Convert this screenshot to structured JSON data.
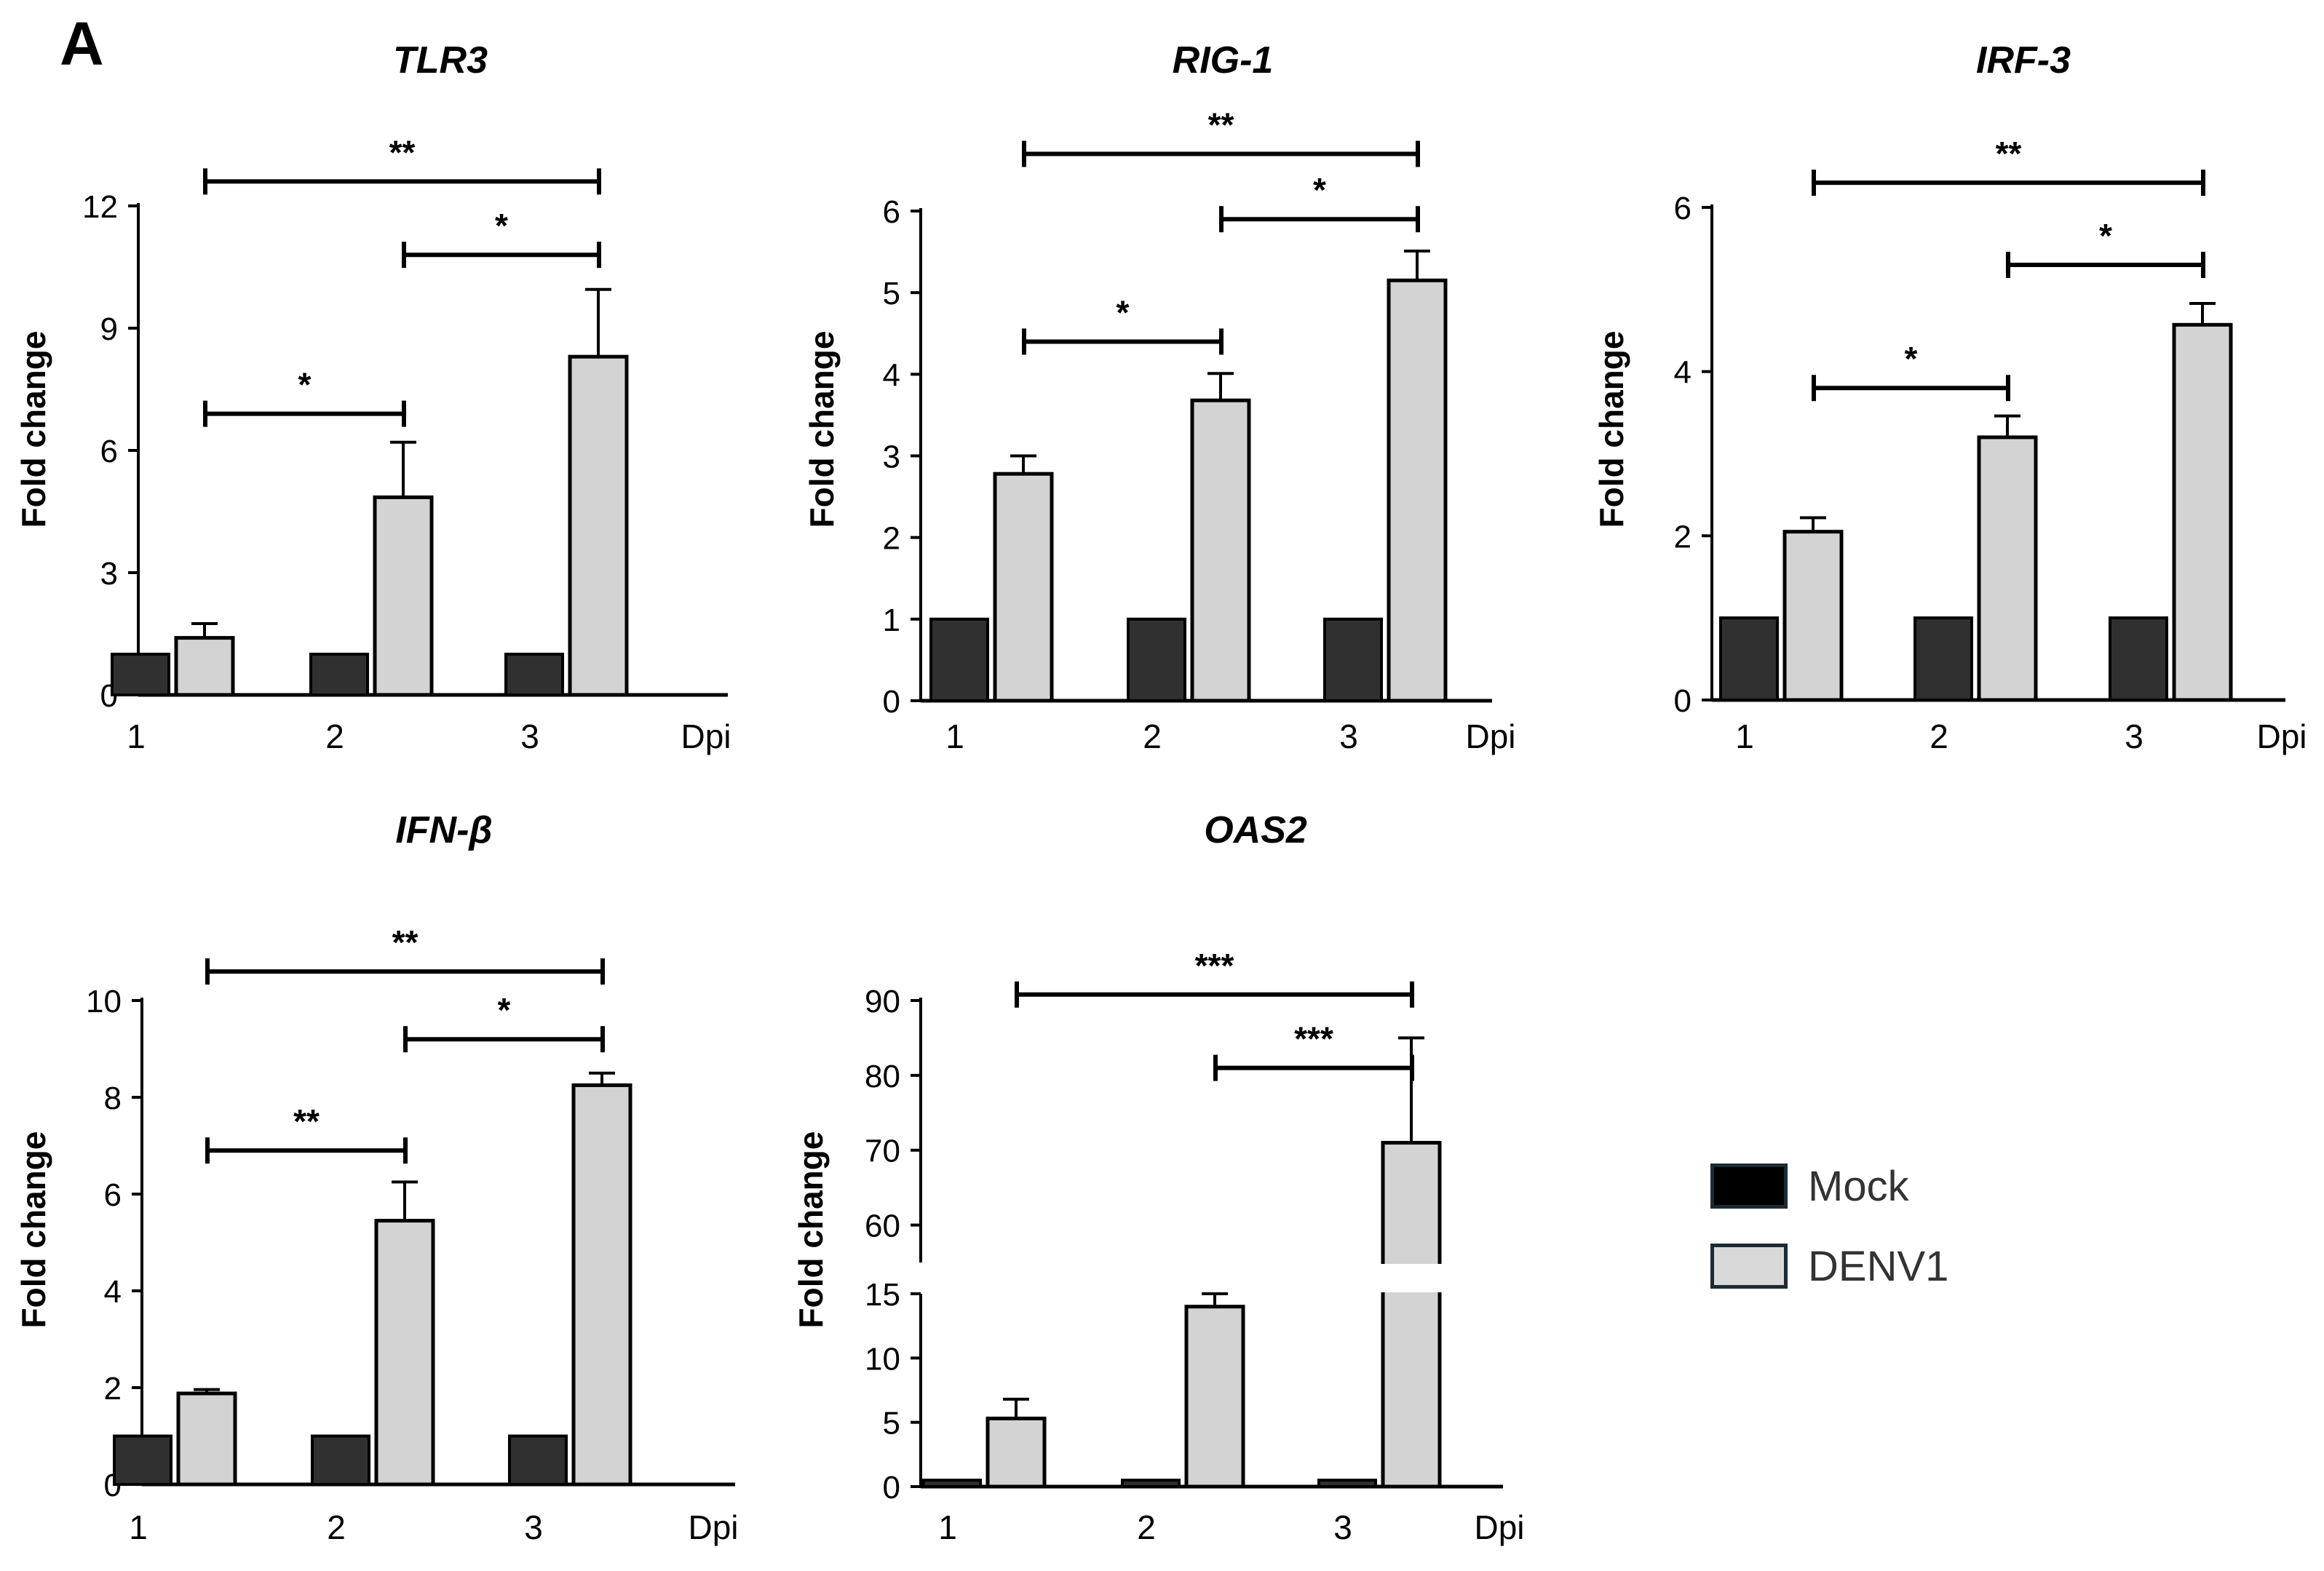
{
  "figure": {
    "panel_label": "A"
  },
  "legend": {
    "items": [
      {
        "label": "Mock",
        "color": "#000000"
      },
      {
        "label": "DENV1",
        "color": "#d9d9d9"
      }
    ]
  },
  "colors": {
    "mock_bar": "#303030",
    "denv_bar": "#d3d3d3",
    "axis": "#000000"
  },
  "chart_data": [
    {
      "type": "bar",
      "title": "TLR3",
      "ylabel": "Fold change",
      "xlabel": "Dpi",
      "categories": [
        "1",
        "2",
        "3"
      ],
      "ylim": [
        0,
        12
      ],
      "yticks": [
        0,
        3,
        6,
        9,
        12
      ],
      "series": [
        {
          "name": "Mock",
          "values": [
            1,
            1,
            1
          ]
        },
        {
          "name": "DENV1",
          "values": [
            1.4,
            4.85,
            8.3
          ],
          "errors": [
            0.35,
            1.35,
            1.65
          ]
        }
      ],
      "significance": [
        {
          "from": 0,
          "to": 2,
          "label": "**",
          "y": 12.6
        },
        {
          "from": 1,
          "to": 2,
          "label": "*",
          "y": 10.8
        },
        {
          "from": 0,
          "to": 1,
          "label": "*",
          "y": 6.9
        }
      ]
    },
    {
      "type": "bar",
      "title": "RIG-1",
      "ylabel": "Fold change",
      "xlabel": "Dpi",
      "categories": [
        "1",
        "2",
        "3"
      ],
      "ylim": [
        0,
        6
      ],
      "yticks": [
        0,
        1,
        2,
        3,
        4,
        5,
        6
      ],
      "series": [
        {
          "name": "Mock",
          "values": [
            1,
            1,
            1
          ]
        },
        {
          "name": "DENV1",
          "values": [
            2.78,
            3.68,
            5.15
          ],
          "errors": [
            0.22,
            0.33,
            0.36
          ]
        }
      ],
      "significance": [
        {
          "from": 0,
          "to": 2,
          "label": "**",
          "y": 6.7
        },
        {
          "from": 1,
          "to": 2,
          "label": "*",
          "y": 5.9
        },
        {
          "from": 0,
          "to": 1,
          "label": "*",
          "y": 4.4
        }
      ]
    },
    {
      "type": "bar",
      "title": "IRF-3",
      "ylabel": "Fold change",
      "xlabel": "Dpi",
      "categories": [
        "1",
        "2",
        "3"
      ],
      "ylim": [
        0,
        6
      ],
      "yticks": [
        0,
        2,
        4,
        6
      ],
      "series": [
        {
          "name": "Mock",
          "values": [
            1,
            1,
            1
          ]
        },
        {
          "name": "DENV1",
          "values": [
            2.05,
            3.2,
            4.57
          ],
          "errors": [
            0.17,
            0.26,
            0.26
          ]
        }
      ],
      "significance": [
        {
          "from": 0,
          "to": 2,
          "label": "**",
          "y": 6.3
        },
        {
          "from": 1,
          "to": 2,
          "label": "*",
          "y": 5.3
        },
        {
          "from": 0,
          "to": 1,
          "label": "*",
          "y": 3.8
        }
      ]
    },
    {
      "type": "bar",
      "title": "IFN-β",
      "ylabel": "Fold change",
      "xlabel": "Dpi",
      "categories": [
        "1",
        "2",
        "3"
      ],
      "ylim": [
        0,
        10
      ],
      "yticks": [
        0,
        2,
        4,
        6,
        8,
        10
      ],
      "series": [
        {
          "name": "Mock",
          "values": [
            1,
            1,
            1
          ]
        },
        {
          "name": "DENV1",
          "values": [
            1.88,
            5.45,
            8.25
          ],
          "errors": [
            0.08,
            0.8,
            0.25
          ]
        }
      ],
      "significance": [
        {
          "from": 0,
          "to": 2,
          "label": "**",
          "y": 10.6
        },
        {
          "from": 1,
          "to": 2,
          "label": "*",
          "y": 9.2
        },
        {
          "from": 0,
          "to": 1,
          "label": "**",
          "y": 6.9
        }
      ]
    },
    {
      "type": "bar",
      "title": "OAS2",
      "ylabel": "Fold change",
      "xlabel": "Dpi",
      "categories": [
        "1",
        "2",
        "3"
      ],
      "broken_axis": {
        "lower": [
          0,
          15
        ],
        "upper": [
          55,
          90
        ]
      },
      "yticks_lower": [
        0,
        5,
        10,
        15
      ],
      "yticks_upper": [
        60,
        70,
        80,
        90
      ],
      "series": [
        {
          "name": "Mock",
          "values": [
            0.5,
            0.5,
            0.5
          ]
        },
        {
          "name": "DENV1",
          "values": [
            5.3,
            14,
            71
          ],
          "errors": [
            1.5,
            2.2,
            14
          ]
        }
      ],
      "significance": [
        {
          "from": 0,
          "to": 2,
          "label": "***",
          "y": 90.8
        },
        {
          "from": 1,
          "to": 2,
          "label": "***",
          "y": 81
        }
      ]
    }
  ]
}
